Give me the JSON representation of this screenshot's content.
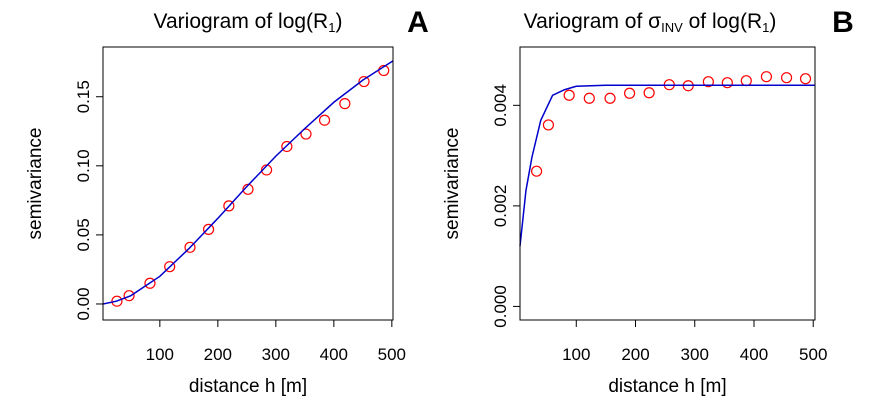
{
  "chart_data": [
    {
      "type": "scatter",
      "title": [
        {
          "text": "Variogram of log(R"
        },
        {
          "text": "1",
          "sub": true
        },
        {
          "text": ")"
        }
      ],
      "panel_label": "A",
      "xlabel": "distance h [m]",
      "ylabel": "semivariance",
      "xlim": [
        2,
        502
      ],
      "ylim": [
        -0.0116,
        0.186
      ],
      "xticks": [
        100,
        200,
        300,
        400,
        500
      ],
      "yticks": [
        {
          "value": 0,
          "label": "0.00"
        },
        {
          "value": 0.05,
          "label": "0.05"
        },
        {
          "value": 0.1,
          "label": "0.10"
        },
        {
          "value": 0.15,
          "label": "0.15"
        }
      ],
      "series": [
        {
          "color": "#ff0000",
          "x": [
            26,
            47,
            83,
            117,
            152,
            184,
            219,
            252,
            284,
            319,
            352,
            384,
            419,
            452,
            486
          ],
          "values": [
            0.002,
            0.006,
            0.015,
            0.027,
            0.041,
            0.054,
            0.071,
            0.083,
            0.097,
            0.114,
            0.123,
            0.133,
            0.145,
            0.161,
            0.169
          ]
        },
        {
          "color": "#0000cc",
          "line": true,
          "x": [
            2,
            25,
            50,
            100,
            150,
            200,
            250,
            300,
            350,
            400,
            450,
            502
          ],
          "values": [
            0,
            0.002,
            0.006,
            0.02,
            0.04,
            0.062,
            0.085,
            0.107,
            0.127,
            0.146,
            0.162,
            0.176
          ]
        }
      ]
    },
    {
      "type": "scatter",
      "title": [
        {
          "text": "Variogram of σ"
        },
        {
          "text": "INV",
          "sub": true
        },
        {
          "text": " of log(R"
        },
        {
          "text": "1",
          "sub": true
        },
        {
          "text": ")"
        }
      ],
      "panel_label": "B",
      "xlabel": "distance h [m]",
      "ylabel": "semivariance",
      "xlim": [
        5,
        503
      ],
      "ylim": [
        -0.00027,
        0.00516
      ],
      "xticks": [
        100,
        200,
        300,
        400,
        500
      ],
      "yticks": [
        {
          "value": 0,
          "label": "0.000"
        },
        {
          "value": 0.002,
          "label": "0.002"
        },
        {
          "value": 0.004,
          "label": "0.004"
        }
      ],
      "series": [
        {
          "color": "#ff0000",
          "x": [
            33,
            53,
            88,
            122,
            157,
            190,
            223,
            257,
            289,
            323,
            355,
            387,
            421,
            455,
            487
          ],
          "values": [
            0.00269,
            0.00361,
            0.0042,
            0.00414,
            0.00414,
            0.00424,
            0.00425,
            0.00441,
            0.00439,
            0.00447,
            0.00445,
            0.00449,
            0.00457,
            0.00455,
            0.00453
          ]
        },
        {
          "color": "#0000cc",
          "line": true,
          "x": [
            5,
            15,
            25,
            40,
            60,
            80,
            100,
            150,
            200,
            300,
            400,
            503
          ],
          "values": [
            0.0012,
            0.0023,
            0.00296,
            0.0037,
            0.0042,
            0.00431,
            0.00438,
            0.0044,
            0.0044,
            0.0044,
            0.0044,
            0.0044
          ]
        }
      ]
    }
  ]
}
